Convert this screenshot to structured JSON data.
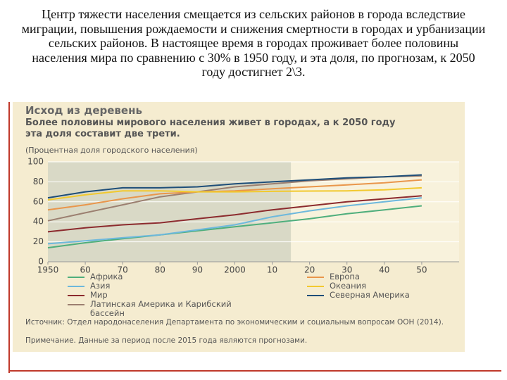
{
  "slide_text": "Центр тяжести населения смещается из сельских районов в города вследствие миграции, повышения рождаемости и снижения смертности в городах и урбанизации сельских районов. В настоящее время в городах проживает более половины населения мира по сравнению с 30% в 1950 году, и эта доля, по прогнозам, к 2050 году достигнет 2\\3.",
  "chart_data": {
    "type": "line",
    "title": "Исход из деревень",
    "subtitle": "Более половины мирового населения живет в городах, а к 2050 году эта доля составит две трети.",
    "y_label": "(Процентная доля городского населения)",
    "x": [
      1950,
      1960,
      1970,
      1980,
      1990,
      2000,
      2010,
      2020,
      2030,
      2040,
      2050
    ],
    "xlim": [
      1950,
      2060
    ],
    "xticks": [
      1950,
      {
        "value": 1960,
        "label": "60"
      },
      {
        "value": 1970,
        "label": "70"
      },
      {
        "value": 1980,
        "label": "80"
      },
      {
        "value": 1990,
        "label": "90"
      },
      2000,
      {
        "value": 2010,
        "label": "10"
      },
      {
        "value": 2020,
        "label": "20"
      },
      {
        "value": 2030,
        "label": "30"
      },
      {
        "value": 2040,
        "label": "40"
      },
      {
        "value": 2050,
        "label": "50"
      }
    ],
    "ylim": [
      0,
      100
    ],
    "yticks": [
      0,
      20,
      40,
      60,
      80,
      100
    ],
    "grid": true,
    "forecast_from": 2015,
    "series": [
      {
        "name": "Африка",
        "color": "#4fae7c",
        "values": [
          14,
          19,
          23,
          27,
          31,
          35,
          39,
          43,
          48,
          52,
          56
        ]
      },
      {
        "name": "Азия",
        "color": "#6db8dc",
        "values": [
          18,
          21,
          24,
          27,
          32,
          37,
          45,
          51,
          56,
          60,
          64
        ]
      },
      {
        "name": "Мир",
        "color": "#8c2b2e",
        "values": [
          30,
          34,
          37,
          39,
          43,
          47,
          52,
          56,
          60,
          63,
          66
        ]
      },
      {
        "name": "Латинская Америка и Карибский бассейн",
        "color": "#9b7f70",
        "values": [
          41,
          49,
          57,
          65,
          70,
          75,
          78,
          81,
          83,
          85,
          86
        ]
      },
      {
        "name": "Европа",
        "color": "#e9964b",
        "values": [
          52,
          57,
          63,
          68,
          70,
          71,
          73,
          75,
          77,
          79,
          82
        ]
      },
      {
        "name": "Океания",
        "color": "#f2c92e",
        "values": [
          62,
          67,
          71,
          71,
          70,
          70,
          70.5,
          70.8,
          71,
          72,
          74
        ]
      },
      {
        "name": "Северная Америка",
        "color": "#1e4e79",
        "values": [
          64,
          70,
          74,
          74,
          75,
          78,
          80,
          82,
          84,
          85,
          87
        ]
      }
    ],
    "source": "Источник: Отдел народонаселения Департамента по экономическим и социальным вопросам ООН (2014).",
    "note": "Примечание. Данные за период после 2015 года являются прогнозами."
  }
}
